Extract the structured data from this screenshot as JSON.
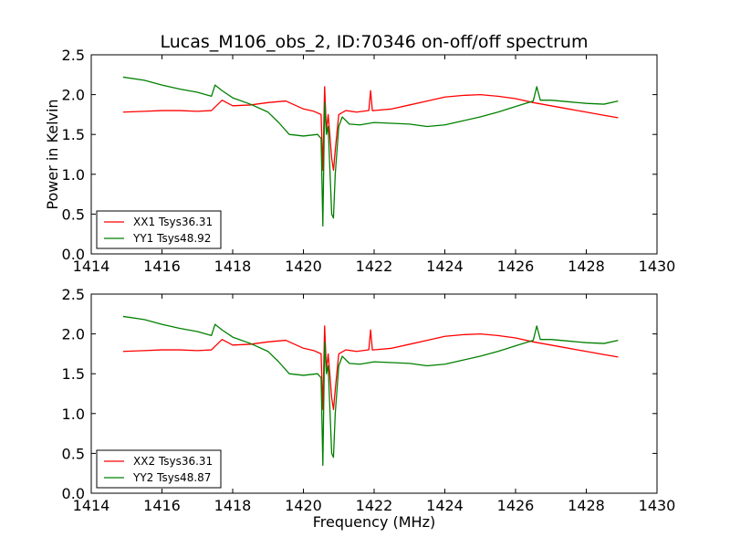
{
  "figure": {
    "title": "Lucas_M106_obs_2, ID:70346 on-off/off spectrum"
  },
  "chart_data": [
    {
      "type": "line",
      "title": "Lucas_M106_obs_2, ID:70346 on-off/off spectrum",
      "xlabel": "",
      "ylabel": "Power in Kelvin",
      "xlim": [
        1414,
        1430
      ],
      "ylim": [
        0.0,
        2.5
      ],
      "xticks": [
        "1414",
        "1416",
        "1418",
        "1420",
        "1422",
        "1424",
        "1426",
        "1428",
        "1430"
      ],
      "yticks": [
        "0.0",
        "0.5",
        "1.0",
        "1.5",
        "2.0",
        "2.5"
      ],
      "grid": false,
      "legend_position": "lower-left",
      "series": [
        {
          "name": "XX1 Tsys36.31",
          "color": "#ff0000",
          "x": [
            1414.9,
            1415.5,
            1416.0,
            1416.5,
            1417.0,
            1417.4,
            1417.7,
            1418.0,
            1418.5,
            1419.0,
            1419.5,
            1420.0,
            1420.3,
            1420.5,
            1420.55,
            1420.6,
            1420.65,
            1420.7,
            1420.8,
            1420.85,
            1420.9,
            1421.0,
            1421.2,
            1421.5,
            1421.85,
            1421.9,
            1421.95,
            1422.0,
            1422.5,
            1423.0,
            1423.5,
            1424.0,
            1424.5,
            1425.0,
            1425.5,
            1426.0,
            1426.5,
            1427.0,
            1427.5,
            1428.0,
            1428.5,
            1428.9
          ],
          "y": [
            1.78,
            1.79,
            1.8,
            1.8,
            1.79,
            1.8,
            1.93,
            1.86,
            1.87,
            1.9,
            1.92,
            1.82,
            1.79,
            1.75,
            1.05,
            2.1,
            1.55,
            1.75,
            1.2,
            1.05,
            1.3,
            1.75,
            1.8,
            1.78,
            1.8,
            2.05,
            1.8,
            1.8,
            1.82,
            1.87,
            1.92,
            1.97,
            1.99,
            2.0,
            1.98,
            1.95,
            1.9,
            1.86,
            1.82,
            1.78,
            1.74,
            1.71
          ]
        },
        {
          "name": "YY1 Tsys48.92",
          "color": "#008000",
          "x": [
            1414.9,
            1415.5,
            1416.0,
            1416.5,
            1417.0,
            1417.4,
            1417.5,
            1417.7,
            1418.0,
            1418.5,
            1419.0,
            1419.3,
            1419.6,
            1420.0,
            1420.4,
            1420.5,
            1420.55,
            1420.6,
            1420.65,
            1420.7,
            1420.8,
            1420.85,
            1420.9,
            1421.0,
            1421.1,
            1421.3,
            1421.6,
            1422.0,
            1422.5,
            1423.0,
            1423.5,
            1424.0,
            1424.5,
            1425.0,
            1425.5,
            1426.0,
            1426.5,
            1426.6,
            1426.7,
            1427.0,
            1427.5,
            1428.0,
            1428.5,
            1428.9
          ],
          "y": [
            2.22,
            2.18,
            2.12,
            2.07,
            2.03,
            1.98,
            2.12,
            2.05,
            1.96,
            1.88,
            1.78,
            1.65,
            1.5,
            1.48,
            1.5,
            1.45,
            0.35,
            1.9,
            1.5,
            1.6,
            0.5,
            0.45,
            1.0,
            1.6,
            1.72,
            1.63,
            1.62,
            1.65,
            1.64,
            1.63,
            1.6,
            1.62,
            1.67,
            1.72,
            1.78,
            1.85,
            1.92,
            2.1,
            1.93,
            1.93,
            1.91,
            1.89,
            1.88,
            1.92
          ]
        }
      ]
    },
    {
      "type": "line",
      "title": "",
      "xlabel": "Frequency (MHz)",
      "ylabel": "",
      "xlim": [
        1414,
        1430
      ],
      "ylim": [
        0.0,
        2.5
      ],
      "xticks": [
        "1414",
        "1416",
        "1418",
        "1420",
        "1422",
        "1424",
        "1426",
        "1428",
        "1430"
      ],
      "yticks": [
        "0.0",
        "0.5",
        "1.0",
        "1.5",
        "2.0",
        "2.5"
      ],
      "grid": false,
      "legend_position": "lower-left",
      "series": [
        {
          "name": "XX2 Tsys36.31",
          "color": "#ff0000",
          "x": [
            1414.9,
            1415.5,
            1416.0,
            1416.5,
            1417.0,
            1417.4,
            1417.7,
            1418.0,
            1418.5,
            1419.0,
            1419.5,
            1420.0,
            1420.3,
            1420.5,
            1420.55,
            1420.6,
            1420.65,
            1420.7,
            1420.8,
            1420.85,
            1420.9,
            1421.0,
            1421.2,
            1421.5,
            1421.85,
            1421.9,
            1421.95,
            1422.0,
            1422.5,
            1423.0,
            1423.5,
            1424.0,
            1424.5,
            1425.0,
            1425.5,
            1426.0,
            1426.5,
            1427.0,
            1427.5,
            1428.0,
            1428.5,
            1428.9
          ],
          "y": [
            1.78,
            1.79,
            1.8,
            1.8,
            1.79,
            1.8,
            1.93,
            1.86,
            1.87,
            1.9,
            1.92,
            1.82,
            1.79,
            1.75,
            1.05,
            2.1,
            1.55,
            1.75,
            1.2,
            1.05,
            1.3,
            1.75,
            1.8,
            1.78,
            1.8,
            2.05,
            1.8,
            1.8,
            1.82,
            1.87,
            1.92,
            1.97,
            1.99,
            2.0,
            1.98,
            1.95,
            1.9,
            1.86,
            1.82,
            1.78,
            1.74,
            1.71
          ]
        },
        {
          "name": "YY2 Tsys48.87",
          "color": "#008000",
          "x": [
            1414.9,
            1415.5,
            1416.0,
            1416.5,
            1417.0,
            1417.4,
            1417.5,
            1417.7,
            1418.0,
            1418.5,
            1419.0,
            1419.3,
            1419.6,
            1420.0,
            1420.4,
            1420.5,
            1420.55,
            1420.6,
            1420.65,
            1420.7,
            1420.8,
            1420.85,
            1420.9,
            1421.0,
            1421.1,
            1421.3,
            1421.6,
            1422.0,
            1422.5,
            1423.0,
            1423.5,
            1424.0,
            1424.5,
            1425.0,
            1425.5,
            1426.0,
            1426.5,
            1426.6,
            1426.7,
            1427.0,
            1427.5,
            1428.0,
            1428.5,
            1428.9
          ],
          "y": [
            2.22,
            2.18,
            2.12,
            2.07,
            2.03,
            1.98,
            2.12,
            2.05,
            1.96,
            1.88,
            1.78,
            1.65,
            1.5,
            1.48,
            1.5,
            1.45,
            0.35,
            1.9,
            1.5,
            1.6,
            0.5,
            0.45,
            1.0,
            1.6,
            1.72,
            1.63,
            1.62,
            1.65,
            1.64,
            1.63,
            1.6,
            1.62,
            1.67,
            1.72,
            1.78,
            1.85,
            1.92,
            2.1,
            1.93,
            1.93,
            1.91,
            1.89,
            1.88,
            1.92
          ]
        }
      ]
    }
  ]
}
